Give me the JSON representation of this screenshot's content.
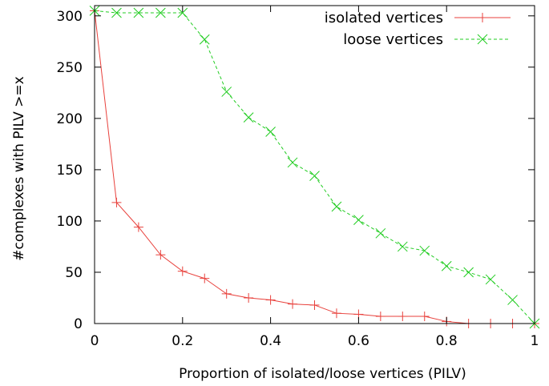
{
  "chart_data": {
    "type": "line",
    "title": "",
    "xlabel": "Proportion of isolated/loose vertices (PILV)",
    "ylabel": "#complexes with PILV >=x",
    "xlim": [
      0,
      1
    ],
    "ylim": [
      0,
      310
    ],
    "x_ticks": [
      0,
      0.2,
      0.4,
      0.6,
      0.8,
      1
    ],
    "y_ticks": [
      0,
      50,
      100,
      150,
      200,
      250,
      300
    ],
    "x_tick_labels": [
      "0",
      "0.2",
      "0.4",
      "0.6",
      "0.8",
      "1"
    ],
    "y_tick_labels": [
      "0",
      "50",
      "100",
      "150",
      "200",
      "250",
      "300"
    ],
    "grid": false,
    "legend_position": "top-right",
    "series": [
      {
        "name": "isolated vertices",
        "color": "#e8413c",
        "dash": "solid",
        "marker": "plus",
        "x": [
          0,
          0.05,
          0.1,
          0.15,
          0.2,
          0.25,
          0.3,
          0.35,
          0.4,
          0.45,
          0.5,
          0.55,
          0.6,
          0.65,
          0.7,
          0.75,
          0.8,
          0.85,
          0.9,
          0.95,
          1
        ],
        "y": [
          305,
          118,
          94,
          67,
          51,
          44,
          29,
          25,
          23,
          19,
          18,
          10,
          9,
          7,
          7,
          7,
          2,
          0,
          0,
          0,
          0
        ]
      },
      {
        "name": "loose vertices",
        "color": "#22cc22",
        "dash": "dashed",
        "marker": "cross",
        "x": [
          0,
          0.05,
          0.1,
          0.15,
          0.2,
          0.25,
          0.3,
          0.35,
          0.4,
          0.45,
          0.5,
          0.55,
          0.6,
          0.65,
          0.7,
          0.75,
          0.8,
          0.85,
          0.9,
          0.95,
          1
        ],
        "y": [
          305,
          303,
          303,
          303,
          303,
          277,
          226,
          201,
          187,
          157,
          144,
          114,
          101,
          88,
          75,
          71,
          56,
          50,
          43,
          23,
          0
        ]
      }
    ]
  }
}
